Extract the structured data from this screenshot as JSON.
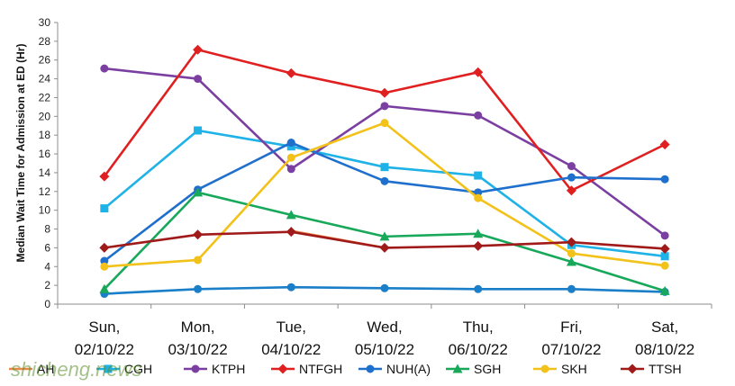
{
  "chart_data": {
    "type": "line",
    "ylabel": "Median Wait Time for Admission at ED (Hr)",
    "ylim": [
      0,
      30
    ],
    "y_ticks": [
      0,
      2,
      4,
      6,
      8,
      10,
      12,
      14,
      16,
      18,
      20,
      22,
      24,
      26,
      28,
      30
    ],
    "grid": false,
    "legend": "bottom",
    "categories": [
      [
        "Sun,",
        "02/10/22"
      ],
      [
        "Mon,",
        "03/10/22"
      ],
      [
        "Tue,",
        "04/10/22"
      ],
      [
        "Wed,",
        "05/10/22"
      ],
      [
        "Thu,",
        "06/10/22"
      ],
      [
        "Fri,",
        "07/10/22"
      ],
      [
        "Sat,",
        "08/10/22"
      ]
    ],
    "series": [
      {
        "name": "AH",
        "color": "#e8894a",
        "marker": "none",
        "values": [
          null,
          null,
          7.8,
          6.0,
          null,
          null,
          null
        ]
      },
      {
        "name": "CGH",
        "color": "#1fb2e6",
        "marker": "square",
        "values": [
          10.2,
          18.5,
          16.8,
          14.6,
          13.7,
          6.3,
          5.1
        ]
      },
      {
        "name": "KTPH",
        "color": "#7a3fa0",
        "marker": "circle",
        "values": [
          25.1,
          24.0,
          14.4,
          21.1,
          20.1,
          14.7,
          7.3
        ]
      },
      {
        "name": "NTFGH",
        "color": "#e02020",
        "marker": "diamond",
        "values": [
          13.6,
          27.1,
          24.6,
          22.5,
          24.7,
          12.1,
          17.0
        ]
      },
      {
        "name": "NUH(A)",
        "color": "#1f6fcc",
        "marker": "circle",
        "values": [
          4.6,
          12.2,
          17.2,
          13.1,
          11.9,
          13.5,
          13.3
        ]
      },
      {
        "name": "NUH(A)",
        "color": "#1a7fc8",
        "marker": "circle",
        "values": [
          1.1,
          1.6,
          1.8,
          1.7,
          1.6,
          1.6,
          1.3
        ]
      },
      {
        "name": "SGH",
        "color": "#18a85a",
        "marker": "triangle",
        "values": [
          1.6,
          11.9,
          9.5,
          7.2,
          7.5,
          4.5,
          1.4
        ]
      },
      {
        "name": "SKH",
        "color": "#f2c21a",
        "marker": "circle",
        "values": [
          4.0,
          4.7,
          15.6,
          19.3,
          11.3,
          5.4,
          4.1
        ]
      },
      {
        "name": "TTSH",
        "color": "#a01a1a",
        "marker": "diamond",
        "values": [
          6.0,
          7.4,
          7.7,
          6.0,
          6.2,
          6.6,
          5.9
        ]
      }
    ],
    "legend_items": [
      {
        "name": "AH",
        "color": "#e8894a",
        "marker": "none"
      },
      {
        "name": "CGH",
        "color": "#1fb2e6",
        "marker": "square"
      },
      {
        "name": "KTPH",
        "color": "#7a3fa0",
        "marker": "circle"
      },
      {
        "name": "NTFGH",
        "color": "#e02020",
        "marker": "diamond"
      },
      {
        "name": "NUH(A)",
        "color": "#1f6fcc",
        "marker": "circle"
      },
      {
        "name": "SGH",
        "color": "#18a85a",
        "marker": "triangle"
      },
      {
        "name": "SKH",
        "color": "#f2c21a",
        "marker": "circle"
      },
      {
        "name": "TTSH",
        "color": "#a01a1a",
        "marker": "diamond"
      }
    ]
  },
  "watermark": "shicheng.news"
}
